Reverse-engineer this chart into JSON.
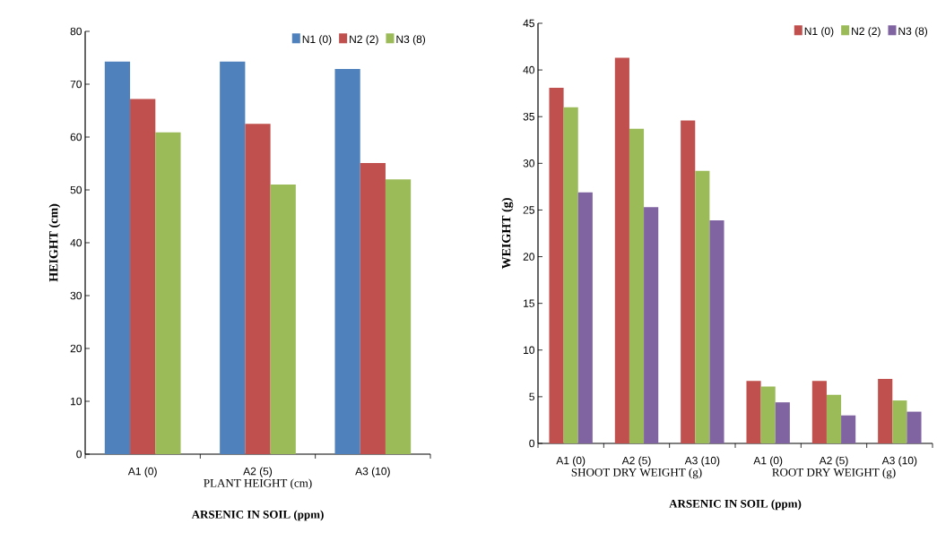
{
  "chart_data": [
    {
      "type": "bar",
      "xlabel": "ARSENIC IN SOIL (ppm)",
      "ylabel": "HEIGHT (cm)",
      "categories": [
        "A1 (0)",
        "A2 (5)",
        "A3 (10)"
      ],
      "annotations": [
        "PLANT HEIGHT (cm)"
      ],
      "series": [
        {
          "name": "N1 (0)",
          "color": "#4f81bd",
          "values": [
            74.3,
            74.3,
            72.9
          ]
        },
        {
          "name": "N2 (2)",
          "color": "#c0504d",
          "values": [
            67.2,
            62.5,
            55.1
          ]
        },
        {
          "name": "N3 (8)",
          "color": "#9bbb59",
          "values": [
            60.9,
            51.0,
            52.0
          ]
        }
      ],
      "ylim": [
        0,
        80
      ],
      "yticks": [
        0,
        10,
        20,
        30,
        40,
        50,
        60,
        70,
        80
      ],
      "grid": false,
      "legend": "top right"
    },
    {
      "type": "bar",
      "xlabel": "ARSENIC IN SOIL (ppm)",
      "ylabel": "WEIGHT (g)",
      "categories": [
        "A1 (0)",
        "A2 (5)",
        "A3 (10)",
        "A1 (0)",
        "A2 (5)",
        "A3 (10)"
      ],
      "annotations": [
        "SHOOT DRY WEIGHT (g)",
        "ROOT DRY WEIGHT (g)"
      ],
      "series": [
        {
          "name": "N1 (0)",
          "color": "#c0504d",
          "values": [
            38.1,
            41.3,
            34.6,
            6.7,
            6.7,
            6.9
          ]
        },
        {
          "name": "N2 (2)",
          "color": "#9bbb59",
          "values": [
            36.0,
            33.7,
            29.2,
            6.1,
            5.2,
            4.6
          ]
        },
        {
          "name": "N3 (8)",
          "color": "#8064a2",
          "values": [
            26.9,
            25.3,
            23.9,
            4.4,
            3.0,
            3.4
          ]
        }
      ],
      "ylim": [
        0,
        45
      ],
      "yticks": [
        0,
        5,
        10,
        15,
        20,
        25,
        30,
        35,
        40,
        45
      ],
      "grid": false,
      "legend": "top right"
    }
  ]
}
